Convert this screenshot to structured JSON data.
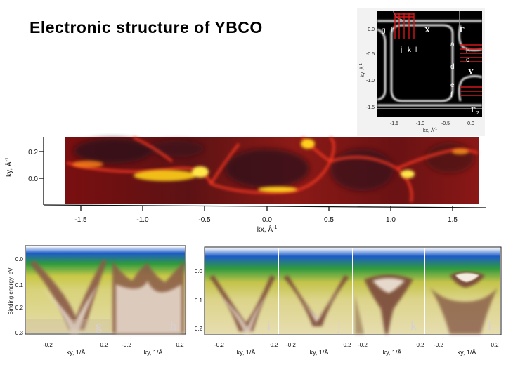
{
  "slide": {
    "title": "Electronic structure of YBCO"
  },
  "inset": {
    "ylabel": "ky, Å",
    "ylabel_exp": "-1",
    "xlabel": "kx, Å",
    "xlabel_exp": "-1",
    "yticks": [
      "0.0",
      "-0.5",
      "-1.0",
      "-1.5"
    ],
    "xticks": [
      "-1.5",
      "-1.0",
      "-0.5",
      "0.0"
    ],
    "cut_labels": [
      "g",
      "h",
      "j",
      "k",
      "l",
      "a",
      "b",
      "c",
      "d",
      "e",
      "f"
    ],
    "points": {
      "X": "X",
      "Gamma": "Γ",
      "Y": "Y",
      "Gamma2": "Γ",
      "Gamma2_sub": "2"
    }
  },
  "fermi_map": {
    "ylabel": "ky, Å",
    "ylabel_exp": "-1",
    "xlabel": "kx, Å",
    "xlabel_exp": "-1",
    "yticks": [
      "0.2",
      "0.0"
    ],
    "xticks": [
      "-1.5",
      "-1.0",
      "-0.5",
      "0.0",
      "0.5",
      "1.0",
      "1.5"
    ]
  },
  "dispersion": {
    "ylabel": "Binding energy, eV",
    "group1_yticks": [
      "0.0",
      "0.1",
      "0.2",
      "0.3"
    ],
    "group2_yticks": [
      "0.0",
      "0.1",
      "0.2"
    ],
    "xlabel": "ky, 1/Å",
    "xtick_left": "-0.2",
    "xtick_right": "0.2",
    "panels": [
      {
        "label": "g"
      },
      {
        "label": "h"
      },
      {
        "label": "i"
      },
      {
        "label": "j"
      },
      {
        "label": "k"
      },
      {
        "label": "l"
      }
    ]
  }
}
